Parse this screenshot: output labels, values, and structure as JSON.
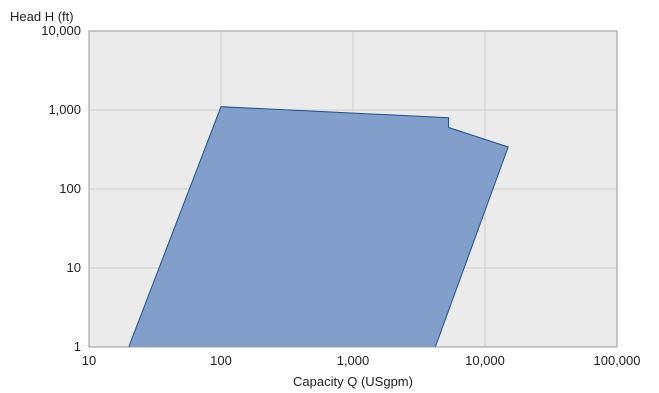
{
  "chart_data": {
    "type": "area",
    "title": "",
    "xlabel": "Capacity Q (USgpm)",
    "ylabel": "Head H (ft)",
    "xscale": "log",
    "yscale": "log",
    "xlim": [
      10,
      100000
    ],
    "ylim": [
      1,
      10000
    ],
    "grid": true,
    "x_ticks": [
      {
        "value": 10,
        "label": "10"
      },
      {
        "value": 100,
        "label": "100"
      },
      {
        "value": 1000,
        "label": "1,000"
      },
      {
        "value": 10000,
        "label": "10,000"
      },
      {
        "value": 100000,
        "label": "100,000"
      }
    ],
    "y_ticks": [
      {
        "value": 1,
        "label": "1"
      },
      {
        "value": 10,
        "label": "10"
      },
      {
        "value": 100,
        "label": "100"
      },
      {
        "value": 1000,
        "label": "1,000"
      },
      {
        "value": 10000,
        "label": "10,000"
      }
    ],
    "region": {
      "fill": "#829ecb",
      "stroke": "#1f4f8e",
      "points": [
        {
          "x": 20,
          "y": 1
        },
        {
          "x": 100,
          "y": 1100
        },
        {
          "x": 5300,
          "y": 800
        },
        {
          "x": 5300,
          "y": 600
        },
        {
          "x": 15000,
          "y": 340
        },
        {
          "x": 4200,
          "y": 1
        }
      ]
    },
    "colors": {
      "plot_background": "#ebebeb",
      "grid": "#cfcfcf",
      "frame": "#9a9a9a"
    }
  }
}
